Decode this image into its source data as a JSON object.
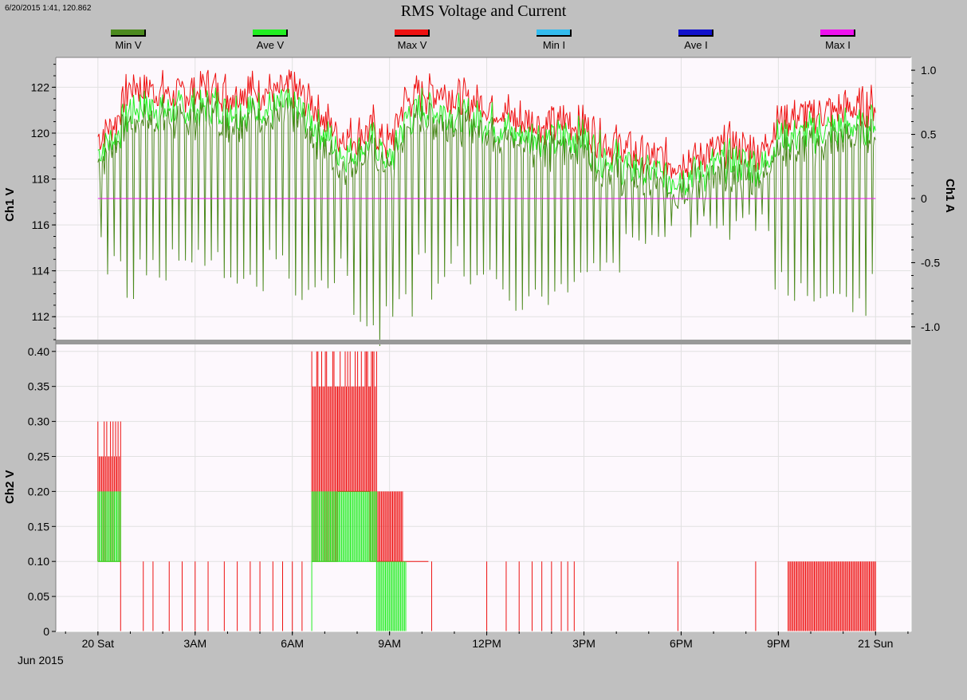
{
  "corner_readout": "6/20/2015 1:41, 120.862",
  "title": "RMS Voltage and Current",
  "legend": [
    {
      "label": "Min V",
      "color": "#4c8a1e"
    },
    {
      "label": "Ave V",
      "color": "#22ee22"
    },
    {
      "label": "Max V",
      "color": "#ee1111"
    },
    {
      "label": "Min I",
      "color": "#33bbee"
    },
    {
      "label": "Ave I",
      "color": "#1111cc"
    },
    {
      "label": "Max I",
      "color": "#ee11ee"
    }
  ],
  "colors": {
    "plot_bg": "#fdf8fd",
    "grid": "#e1e1e1",
    "frame": "#c0c0c0",
    "divider": "#999999"
  },
  "x_axis": {
    "ticks": [
      "20 Sat",
      "3AM",
      "6AM",
      "9AM",
      "12PM",
      "3PM",
      "6PM",
      "9PM",
      "21 Sun"
    ],
    "tick_hours": [
      0,
      3,
      6,
      9,
      12,
      15,
      18,
      21,
      24
    ],
    "xlim_hours": [
      -1.3,
      25.1
    ],
    "month": "Jun 2015"
  },
  "chart_data": [
    {
      "type": "line",
      "ylabel": "Ch1 V",
      "ylim": [
        111,
        123.3
      ],
      "yticks": [
        112,
        114,
        116,
        118,
        120,
        122
      ],
      "y2label": "Ch1 A",
      "y2lim": [
        -1.1,
        1.1
      ],
      "y2ticks": [
        "1.0",
        "0.5",
        "0",
        "-0.5",
        "-1.0"
      ],
      "y2tick_values": [
        1.0,
        0.5,
        0,
        -0.5,
        -1.0
      ],
      "series": [
        {
          "name": "Min V",
          "x_hours": [
            0,
            0.5,
            1,
            1.5,
            2,
            2.5,
            3,
            3.5,
            4,
            4.5,
            5,
            5.5,
            6,
            6.5,
            7,
            7.5,
            8,
            8.5,
            9,
            9.5,
            10,
            10.5,
            11,
            11.5,
            12,
            12.5,
            13,
            13.5,
            14,
            14.5,
            15,
            15.5,
            16,
            16.5,
            17,
            17.5,
            18,
            18.5,
            19,
            19.5,
            20,
            20.5,
            21,
            21.5,
            22,
            22.5,
            23,
            23.5,
            24
          ],
          "values": [
            118.5,
            119.5,
            120.5,
            120.8,
            120.6,
            120.4,
            120.7,
            120.8,
            120.5,
            120.6,
            120.7,
            120.6,
            120.8,
            120.2,
            119.4,
            118.6,
            118.8,
            119.2,
            118.2,
            120.2,
            120.6,
            120.6,
            120.4,
            120.3,
            120.1,
            119.8,
            119.4,
            119.4,
            119.2,
            119.4,
            119.3,
            118.6,
            118.3,
            118.0,
            117.8,
            117.6,
            117.6,
            117.8,
            118.0,
            118.3,
            118.2,
            118.0,
            119.3,
            119.4,
            119.5,
            119.6,
            119.7,
            119.8,
            120.0
          ],
          "dips": [
            115.2,
            114.3,
            113.2,
            114.0,
            113.6,
            114.4,
            114.7,
            114.3,
            114.2,
            113.8,
            113.4,
            114.5,
            113.1,
            112.8,
            113.5,
            114.0,
            111.8,
            111.2,
            112.2,
            112.5,
            115.0,
            113.3,
            114.8,
            113.8,
            114.4,
            113.2,
            112.0,
            112.6,
            113.0,
            113.6,
            113.9,
            114.4,
            114.3,
            115.3,
            115.4,
            116.0,
            116.4,
            116.0,
            116.2,
            115.8,
            116.5,
            116.1,
            113.4,
            113.2,
            112.8,
            113.4,
            112.7,
            112.4,
            113.5
          ]
        },
        {
          "name": "Ave V",
          "x_hours": [
            0,
            0.5,
            1,
            1.5,
            2,
            2.5,
            3,
            3.5,
            4,
            4.5,
            5,
            5.5,
            6,
            6.5,
            7,
            7.5,
            8,
            8.5,
            9,
            9.5,
            10,
            10.5,
            11,
            11.5,
            12,
            12.5,
            13,
            13.5,
            14,
            14.5,
            15,
            15.5,
            16,
            16.5,
            17,
            17.5,
            18,
            18.5,
            19,
            19.5,
            20,
            20.5,
            21,
            21.5,
            22,
            22.5,
            23,
            23.5,
            24
          ],
          "values": [
            119.2,
            119.8,
            121.0,
            121.2,
            121.0,
            120.9,
            121.1,
            121.2,
            121.0,
            121.0,
            121.1,
            121.0,
            121.2,
            120.7,
            119.9,
            119.2,
            119.3,
            119.6,
            118.7,
            120.7,
            121.1,
            121.0,
            120.8,
            120.7,
            120.5,
            120.3,
            119.9,
            119.9,
            119.6,
            119.9,
            119.7,
            119.1,
            118.8,
            118.5,
            118.3,
            118.1,
            118.1,
            118.3,
            118.5,
            118.8,
            118.7,
            118.5,
            119.8,
            119.9,
            120.0,
            120.1,
            120.2,
            120.3,
            120.5
          ]
        },
        {
          "name": "Max V",
          "x_hours": [
            0,
            0.5,
            1,
            1.5,
            2,
            2.5,
            3,
            3.5,
            4,
            4.5,
            5,
            5.5,
            6,
            6.5,
            7,
            7.5,
            8,
            8.5,
            9,
            9.5,
            10,
            10.5,
            11,
            11.5,
            12,
            12.5,
            13,
            13.5,
            14,
            14.5,
            15,
            15.5,
            16,
            16.5,
            17,
            17.5,
            18,
            18.5,
            19,
            19.5,
            20,
            20.5,
            21,
            21.5,
            22,
            22.5,
            23,
            23.5,
            24
          ],
          "values": [
            119.8,
            120.5,
            122.0,
            122.0,
            121.8,
            121.6,
            121.9,
            122.0,
            121.8,
            121.8,
            121.9,
            121.7,
            122.0,
            121.5,
            120.6,
            119.8,
            119.9,
            120.3,
            119.4,
            121.5,
            121.8,
            121.8,
            121.6,
            121.4,
            121.2,
            121.0,
            120.6,
            120.6,
            120.3,
            120.6,
            120.4,
            119.8,
            119.5,
            119.2,
            119.0,
            118.8,
            118.8,
            119.0,
            119.2,
            119.5,
            119.4,
            119.2,
            120.6,
            120.8,
            120.8,
            120.9,
            121.0,
            121.1,
            121.3
          ]
        },
        {
          "name": "Max I",
          "x_hours": [
            0,
            24
          ],
          "axis": "y2",
          "values": [
            0,
            0
          ]
        }
      ]
    },
    {
      "type": "step",
      "ylabel": "Ch2 V",
      "ylim": [
        0,
        0.41
      ],
      "yticks": [
        "0.40",
        "0.35",
        "0.30",
        "0.25",
        "0.20",
        "0.15",
        "0.10",
        "0.05",
        "0"
      ],
      "ytick_values": [
        0.4,
        0.35,
        0.3,
        0.25,
        0.2,
        0.15,
        0.1,
        0.05,
        0
      ],
      "series": [
        {
          "name": "Max V",
          "spike_hours": [
            1.4,
            1.7,
            2.2,
            2.6,
            3.0,
            3.4,
            3.9,
            4.3,
            4.7,
            5.0,
            5.4,
            5.7,
            6.0,
            6.3,
            10.3,
            12.0,
            12.6,
            13.0,
            13.4,
            13.7,
            14.0,
            14.3,
            14.5,
            14.7,
            17.9,
            20.3
          ],
          "spike_value": 0.1,
          "bursts": [
            {
              "from": 0.0,
              "to": 0.7,
              "low": 0.1,
              "high": 0.3
            },
            {
              "from": 6.6,
              "to": 7.4,
              "low": 0.1,
              "high": 0.4
            },
            {
              "from": 7.4,
              "to": 8.4,
              "low": 0.2,
              "high": 0.4
            },
            {
              "from": 8.4,
              "to": 8.6,
              "low": 0.1,
              "high": 0.4
            },
            {
              "from": 8.6,
              "to": 9.4,
              "low": 0.1,
              "high": 0.2
            },
            {
              "from": 9.4,
              "to": 10.2,
              "low": 0.1,
              "high": 0.1
            },
            {
              "from": 21.3,
              "to": 24.0,
              "low": 0.0,
              "high": 0.1
            }
          ]
        },
        {
          "name": "Ave V",
          "bursts": [
            {
              "from": 0.0,
              "to": 0.7,
              "low": 0.1,
              "high": 0.2
            },
            {
              "from": 6.6,
              "to": 8.6,
              "low": 0.1,
              "high": 0.2
            },
            {
              "from": 8.6,
              "to": 9.5,
              "low": 0.0,
              "high": 0.1
            }
          ]
        }
      ]
    }
  ]
}
